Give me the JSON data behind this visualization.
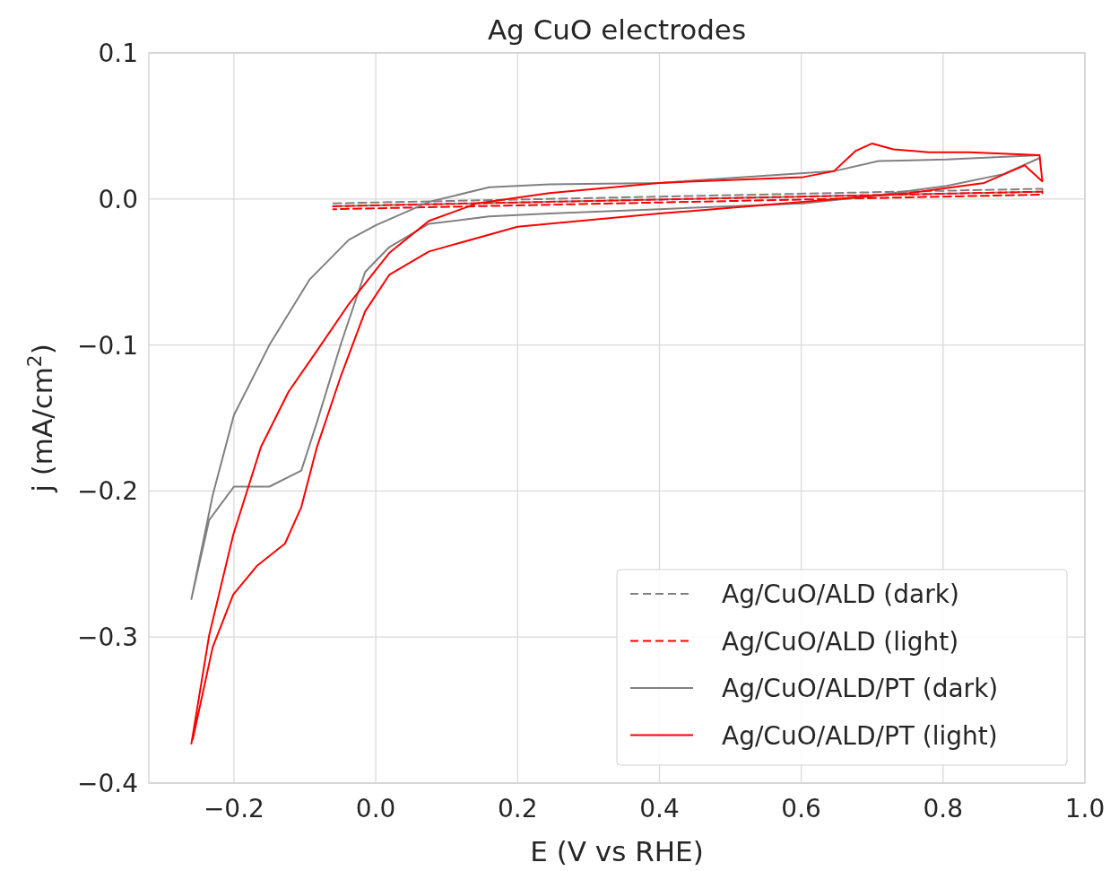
{
  "chart_data": {
    "type": "line",
    "title": "Ag CuO electrodes",
    "xlabel": "E (V vs RHE)",
    "ylabel": "j (mA/cm$^{2}$)",
    "xlim": [
      -0.32,
      1.0
    ],
    "ylim": [
      -0.4,
      0.1
    ],
    "xticks": [
      {
        "value": -0.2,
        "label": "−0.2"
      },
      {
        "value": 0.0,
        "label": "0.0"
      },
      0.2,
      0.4,
      0.6,
      0.8,
      {
        "value": 1.0,
        "label": "1.0"
      }
    ],
    "yticks": [
      {
        "value": -0.4,
        "label": "−0.4"
      },
      {
        "value": -0.3,
        "label": "−0.3"
      },
      {
        "value": -0.2,
        "label": "−0.2"
      },
      {
        "value": -0.1,
        "label": "−0.1"
      },
      {
        "value": 0.0,
        "label": "0.0"
      },
      0.1
    ],
    "grid": true,
    "legend": "bottom right",
    "series": [
      {
        "name": "Ag/CuO/ALD (dark)",
        "color": "#808080",
        "line_style": "dashed",
        "x": [
          -0.06,
          0.94,
          0.94,
          -0.06
        ],
        "values": [
          -0.003,
          0.007,
          0.005,
          -0.005
        ]
      },
      {
        "name": "Ag/CuO/ALD (light)",
        "color": "#ff0000",
        "line_style": "dashed",
        "x": [
          -0.06,
          0.94,
          0.94,
          -0.06
        ],
        "values": [
          -0.005,
          0.005,
          0.003,
          -0.007
        ]
      },
      {
        "name": "Ag/CuO/ALD/PT (dark)",
        "color": "#808080",
        "line_style": "solid",
        "x": [
          0.936,
          0.885,
          0.805,
          0.7,
          0.603,
          0.4,
          0.245,
          0.16,
          0.075,
          0.019,
          -0.015,
          -0.049,
          -0.083,
          -0.105,
          -0.15,
          -0.2,
          -0.235,
          -0.26,
          -0.23,
          -0.2,
          -0.15,
          -0.093,
          -0.038,
          0.0,
          0.075,
          0.16,
          0.245,
          0.4,
          0.646,
          0.709,
          0.805,
          0.936
        ],
        "values": [
          0.028,
          0.017,
          0.009,
          0.002,
          -0.003,
          -0.007,
          -0.01,
          -0.012,
          -0.017,
          -0.033,
          -0.05,
          -0.099,
          -0.153,
          -0.186,
          -0.197,
          -0.197,
          -0.22,
          -0.274,
          -0.203,
          -0.148,
          -0.1,
          -0.055,
          -0.028,
          -0.018,
          -0.002,
          0.008,
          0.01,
          0.011,
          0.019,
          0.026,
          0.027,
          0.03
        ]
      },
      {
        "name": "Ag/CuO/ALD/PT (light)",
        "color": "#ff0000",
        "line_style": "solid",
        "x": [
          -0.26,
          -0.235,
          -0.201,
          -0.162,
          -0.123,
          -0.083,
          -0.038,
          0.019,
          0.075,
          0.143,
          0.245,
          0.4,
          0.603,
          0.646,
          0.677,
          0.7,
          0.73,
          0.779,
          0.837,
          0.936,
          0.94,
          0.915,
          0.858,
          0.752,
          0.7,
          0.603,
          0.4,
          0.2,
          0.075,
          0.019,
          -0.015,
          -0.049,
          -0.083,
          -0.105,
          -0.128,
          -0.167,
          -0.201,
          -0.23,
          -0.258
        ],
        "values": [
          -0.373,
          -0.299,
          -0.23,
          -0.17,
          -0.132,
          -0.104,
          -0.072,
          -0.037,
          -0.015,
          -0.003,
          0.004,
          0.011,
          0.015,
          0.019,
          0.033,
          0.038,
          0.034,
          0.032,
          0.032,
          0.03,
          0.012,
          0.023,
          0.011,
          0.004,
          0.002,
          -0.002,
          -0.01,
          -0.019,
          -0.036,
          -0.052,
          -0.077,
          -0.121,
          -0.17,
          -0.211,
          -0.236,
          -0.251,
          -0.271,
          -0.307,
          -0.37
        ]
      }
    ]
  }
}
